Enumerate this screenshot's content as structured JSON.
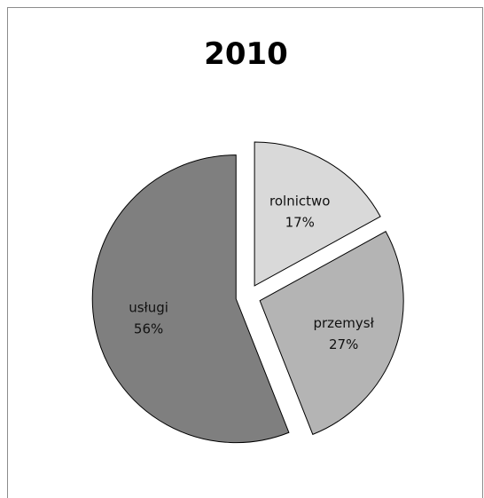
{
  "chart_data": {
    "type": "pie",
    "title": "2010",
    "slices": [
      {
        "label": "rolnictwo",
        "value": 17,
        "display": "17%",
        "color": "#d9d9d9"
      },
      {
        "label": "przemysł",
        "value": 27,
        "display": "27%",
        "color": "#b4b4b4"
      },
      {
        "label": "usługi",
        "value": 56,
        "display": "56%",
        "color": "#7f7f7f"
      }
    ],
    "data_labels": "inside",
    "exploded": true,
    "legend": "none"
  }
}
